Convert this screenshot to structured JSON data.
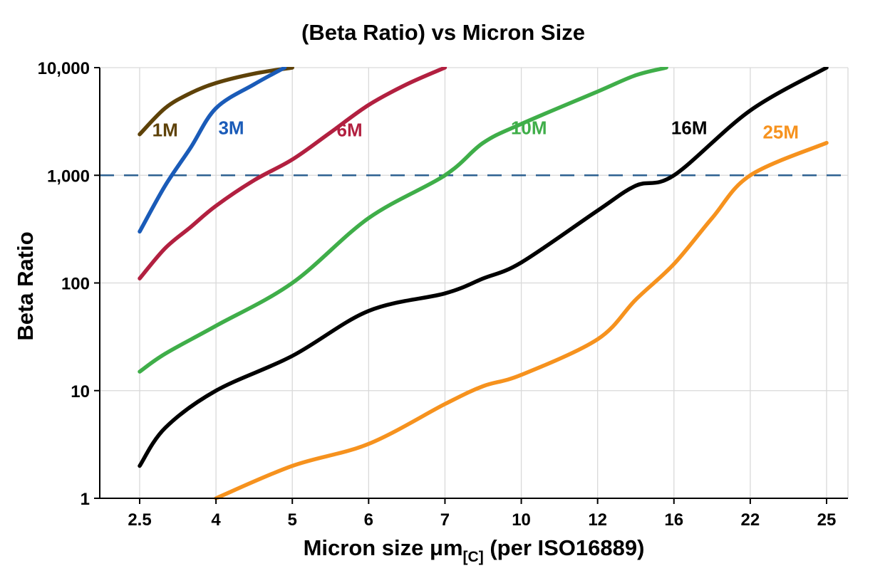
{
  "chart_data": {
    "type": "line",
    "title": "(Beta Ratio) vs Micron Size",
    "ylabel": "Beta Ratio",
    "xlabel_main": "Micron size μm",
    "xlabel_sub": "[C]",
    "xlabel_suffix": " (per ISO16889)",
    "x_scale": "categorical",
    "y_scale": "log",
    "grid": true,
    "x_categories": [
      "2.5",
      "4",
      "5",
      "6",
      "7",
      "10",
      "12",
      "16",
      "22",
      "25"
    ],
    "y_ticks": [
      1,
      10,
      100,
      1000,
      10000
    ],
    "y_tick_labels": [
      "1",
      "10",
      "100",
      "1,000",
      "10,000"
    ],
    "ylim": [
      1,
      10000
    ],
    "reference_line": {
      "y": 1000,
      "style": "dashed",
      "color": "#2e6191"
    },
    "gridline_color": "#d9d9d9",
    "axis_color": "#000000",
    "series": [
      {
        "name": "1M",
        "color": "#5e4209",
        "label_at": {
          "x": 3.0,
          "y": 2300
        },
        "points": [
          [
            2.5,
            2400
          ],
          [
            3,
            4200
          ],
          [
            3.5,
            5800
          ],
          [
            4,
            7200
          ],
          [
            4.5,
            8800
          ],
          [
            5,
            10000
          ]
        ]
      },
      {
        "name": "3M",
        "color": "#1a5bb8",
        "label_at": {
          "x": 4.2,
          "y": 2400
        },
        "points": [
          [
            2.5,
            300
          ],
          [
            3,
            800
          ],
          [
            3.5,
            1800
          ],
          [
            4,
            4200
          ],
          [
            4.5,
            7000
          ],
          [
            4.9,
            10000
          ]
        ]
      },
      {
        "name": "6M",
        "color": "#b22040",
        "label_at": {
          "x": 5.75,
          "y": 2300
        },
        "points": [
          [
            2.5,
            110
          ],
          [
            3,
            210
          ],
          [
            3.5,
            330
          ],
          [
            4,
            520
          ],
          [
            4.5,
            900
          ],
          [
            5,
            1400
          ],
          [
            5.5,
            2500
          ],
          [
            6,
            4500
          ],
          [
            6.5,
            7000
          ],
          [
            7,
            10000
          ]
        ]
      },
      {
        "name": "10M",
        "color": "#3fae49",
        "label_at": {
          "x": 10.2,
          "y": 2400
        },
        "points": [
          [
            2.5,
            15
          ],
          [
            3,
            22
          ],
          [
            4,
            40
          ],
          [
            5,
            100
          ],
          [
            6,
            400
          ],
          [
            7,
            1000
          ],
          [
            8.5,
            2000
          ],
          [
            10,
            3000
          ],
          [
            12,
            6000
          ],
          [
            14,
            8500
          ],
          [
            15.6,
            10000
          ]
        ]
      },
      {
        "name": "16M",
        "color": "#000000",
        "label_at": {
          "x": 17.2,
          "y": 2400
        },
        "points": [
          [
            2.5,
            2
          ],
          [
            3,
            4.5
          ],
          [
            4,
            10
          ],
          [
            5,
            21
          ],
          [
            6,
            55
          ],
          [
            7,
            80
          ],
          [
            8.5,
            110
          ],
          [
            10,
            155
          ],
          [
            12,
            470
          ],
          [
            14,
            800
          ],
          [
            16,
            1000
          ],
          [
            22,
            4000
          ],
          [
            25,
            10000
          ]
        ]
      },
      {
        "name": "25M",
        "color": "#f6921e",
        "label_at": {
          "x": 23.2,
          "y": 2200
        },
        "points": [
          [
            4,
            1
          ],
          [
            5,
            2
          ],
          [
            6,
            3.2
          ],
          [
            7,
            7.5
          ],
          [
            8.5,
            11
          ],
          [
            10,
            14
          ],
          [
            12,
            30
          ],
          [
            14,
            70
          ],
          [
            16,
            150
          ],
          [
            19,
            400
          ],
          [
            22,
            1000
          ],
          [
            25,
            2000
          ]
        ]
      }
    ]
  }
}
